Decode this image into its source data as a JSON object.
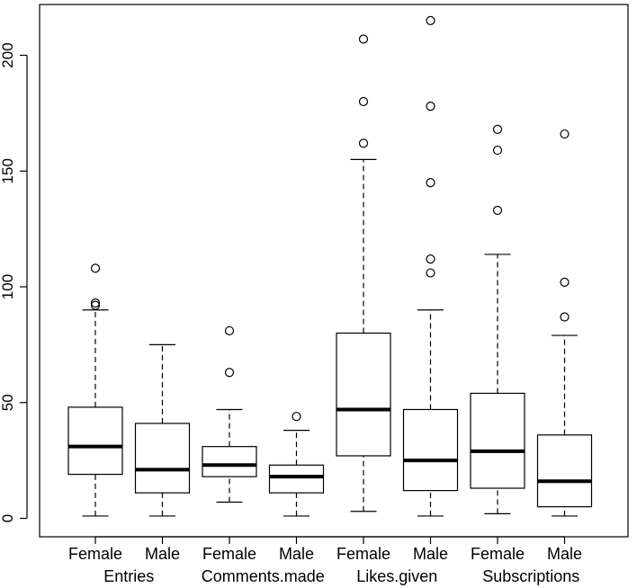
{
  "chart_data": {
    "type": "boxplot",
    "title": "",
    "xlabel": "",
    "ylabel": "",
    "ylim": [
      0,
      220
    ],
    "y_ticks": [
      {
        "value": 0,
        "label": "0"
      },
      {
        "value": 50,
        "label": "50"
      },
      {
        "value": 100,
        "label": "100"
      },
      {
        "value": 150,
        "label": "150"
      },
      {
        "value": 200,
        "label": "200"
      }
    ],
    "groups": [
      "Entries",
      "Comments.made",
      "Likes.given",
      "Subscriptions"
    ],
    "boxes": [
      {
        "group": "Entries",
        "label": "Female",
        "whisker_low": 1,
        "q1": 19,
        "median": 31,
        "q3": 48,
        "whisker_high": 90,
        "outliers": [
          92,
          93,
          108
        ]
      },
      {
        "group": "Entries",
        "label": "Male",
        "whisker_low": 1,
        "q1": 11,
        "median": 21,
        "q3": 41,
        "whisker_high": 75,
        "outliers": []
      },
      {
        "group": "Comments.made",
        "label": "Female",
        "whisker_low": 7,
        "q1": 18,
        "median": 23,
        "q3": 31,
        "whisker_high": 47,
        "outliers": [
          63,
          81
        ]
      },
      {
        "group": "Comments.made",
        "label": "Male",
        "whisker_low": 1,
        "q1": 11,
        "median": 18,
        "q3": 23,
        "whisker_high": 38,
        "outliers": [
          44
        ]
      },
      {
        "group": "Likes.given",
        "label": "Female",
        "whisker_low": 3,
        "q1": 27,
        "median": 47,
        "q3": 80,
        "whisker_high": 155,
        "outliers": [
          162,
          180,
          207
        ]
      },
      {
        "group": "Likes.given",
        "label": "Male",
        "whisker_low": 1,
        "q1": 12,
        "median": 25,
        "q3": 47,
        "whisker_high": 90,
        "outliers": [
          106,
          112,
          145,
          178,
          215
        ]
      },
      {
        "group": "Subscriptions",
        "label": "Female",
        "whisker_low": 2,
        "q1": 13,
        "median": 29,
        "q3": 54,
        "whisker_high": 114,
        "outliers": [
          133,
          159,
          168
        ]
      },
      {
        "group": "Subscriptions",
        "label": "Male",
        "whisker_low": 1,
        "q1": 5,
        "median": 16,
        "q3": 36,
        "whisker_high": 79,
        "outliers": [
          87,
          102,
          166
        ]
      }
    ]
  }
}
